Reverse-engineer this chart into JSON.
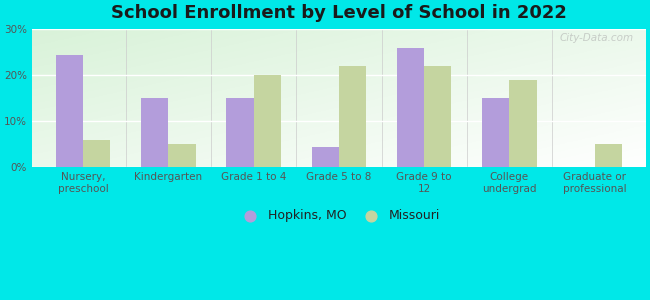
{
  "title": "School Enrollment by Level of School in 2022",
  "categories": [
    "Nursery,\npreschool",
    "Kindergarten",
    "Grade 1 to 4",
    "Grade 5 to 8",
    "Grade 9 to\n12",
    "College\nundergrad",
    "Graduate or\nprofessional"
  ],
  "hopkins": [
    24.5,
    15.0,
    15.0,
    4.5,
    26.0,
    15.0,
    0.0
  ],
  "missouri": [
    6.0,
    5.0,
    20.0,
    22.0,
    22.0,
    19.0,
    5.0
  ],
  "hopkins_color": "#b39ddb",
  "missouri_color": "#c5d5a0",
  "background_fig": "#00e8e8",
  "ylim": [
    0,
    30
  ],
  "yticks": [
    0,
    10,
    20,
    30
  ],
  "ytick_labels": [
    "0%",
    "10%",
    "20%",
    "30%"
  ],
  "legend_hopkins": "Hopkins, MO",
  "legend_missouri": "Missouri",
  "bar_width": 0.32,
  "title_fontsize": 13,
  "tick_fontsize": 7.5,
  "legend_fontsize": 9,
  "watermark": "City-Data.com"
}
